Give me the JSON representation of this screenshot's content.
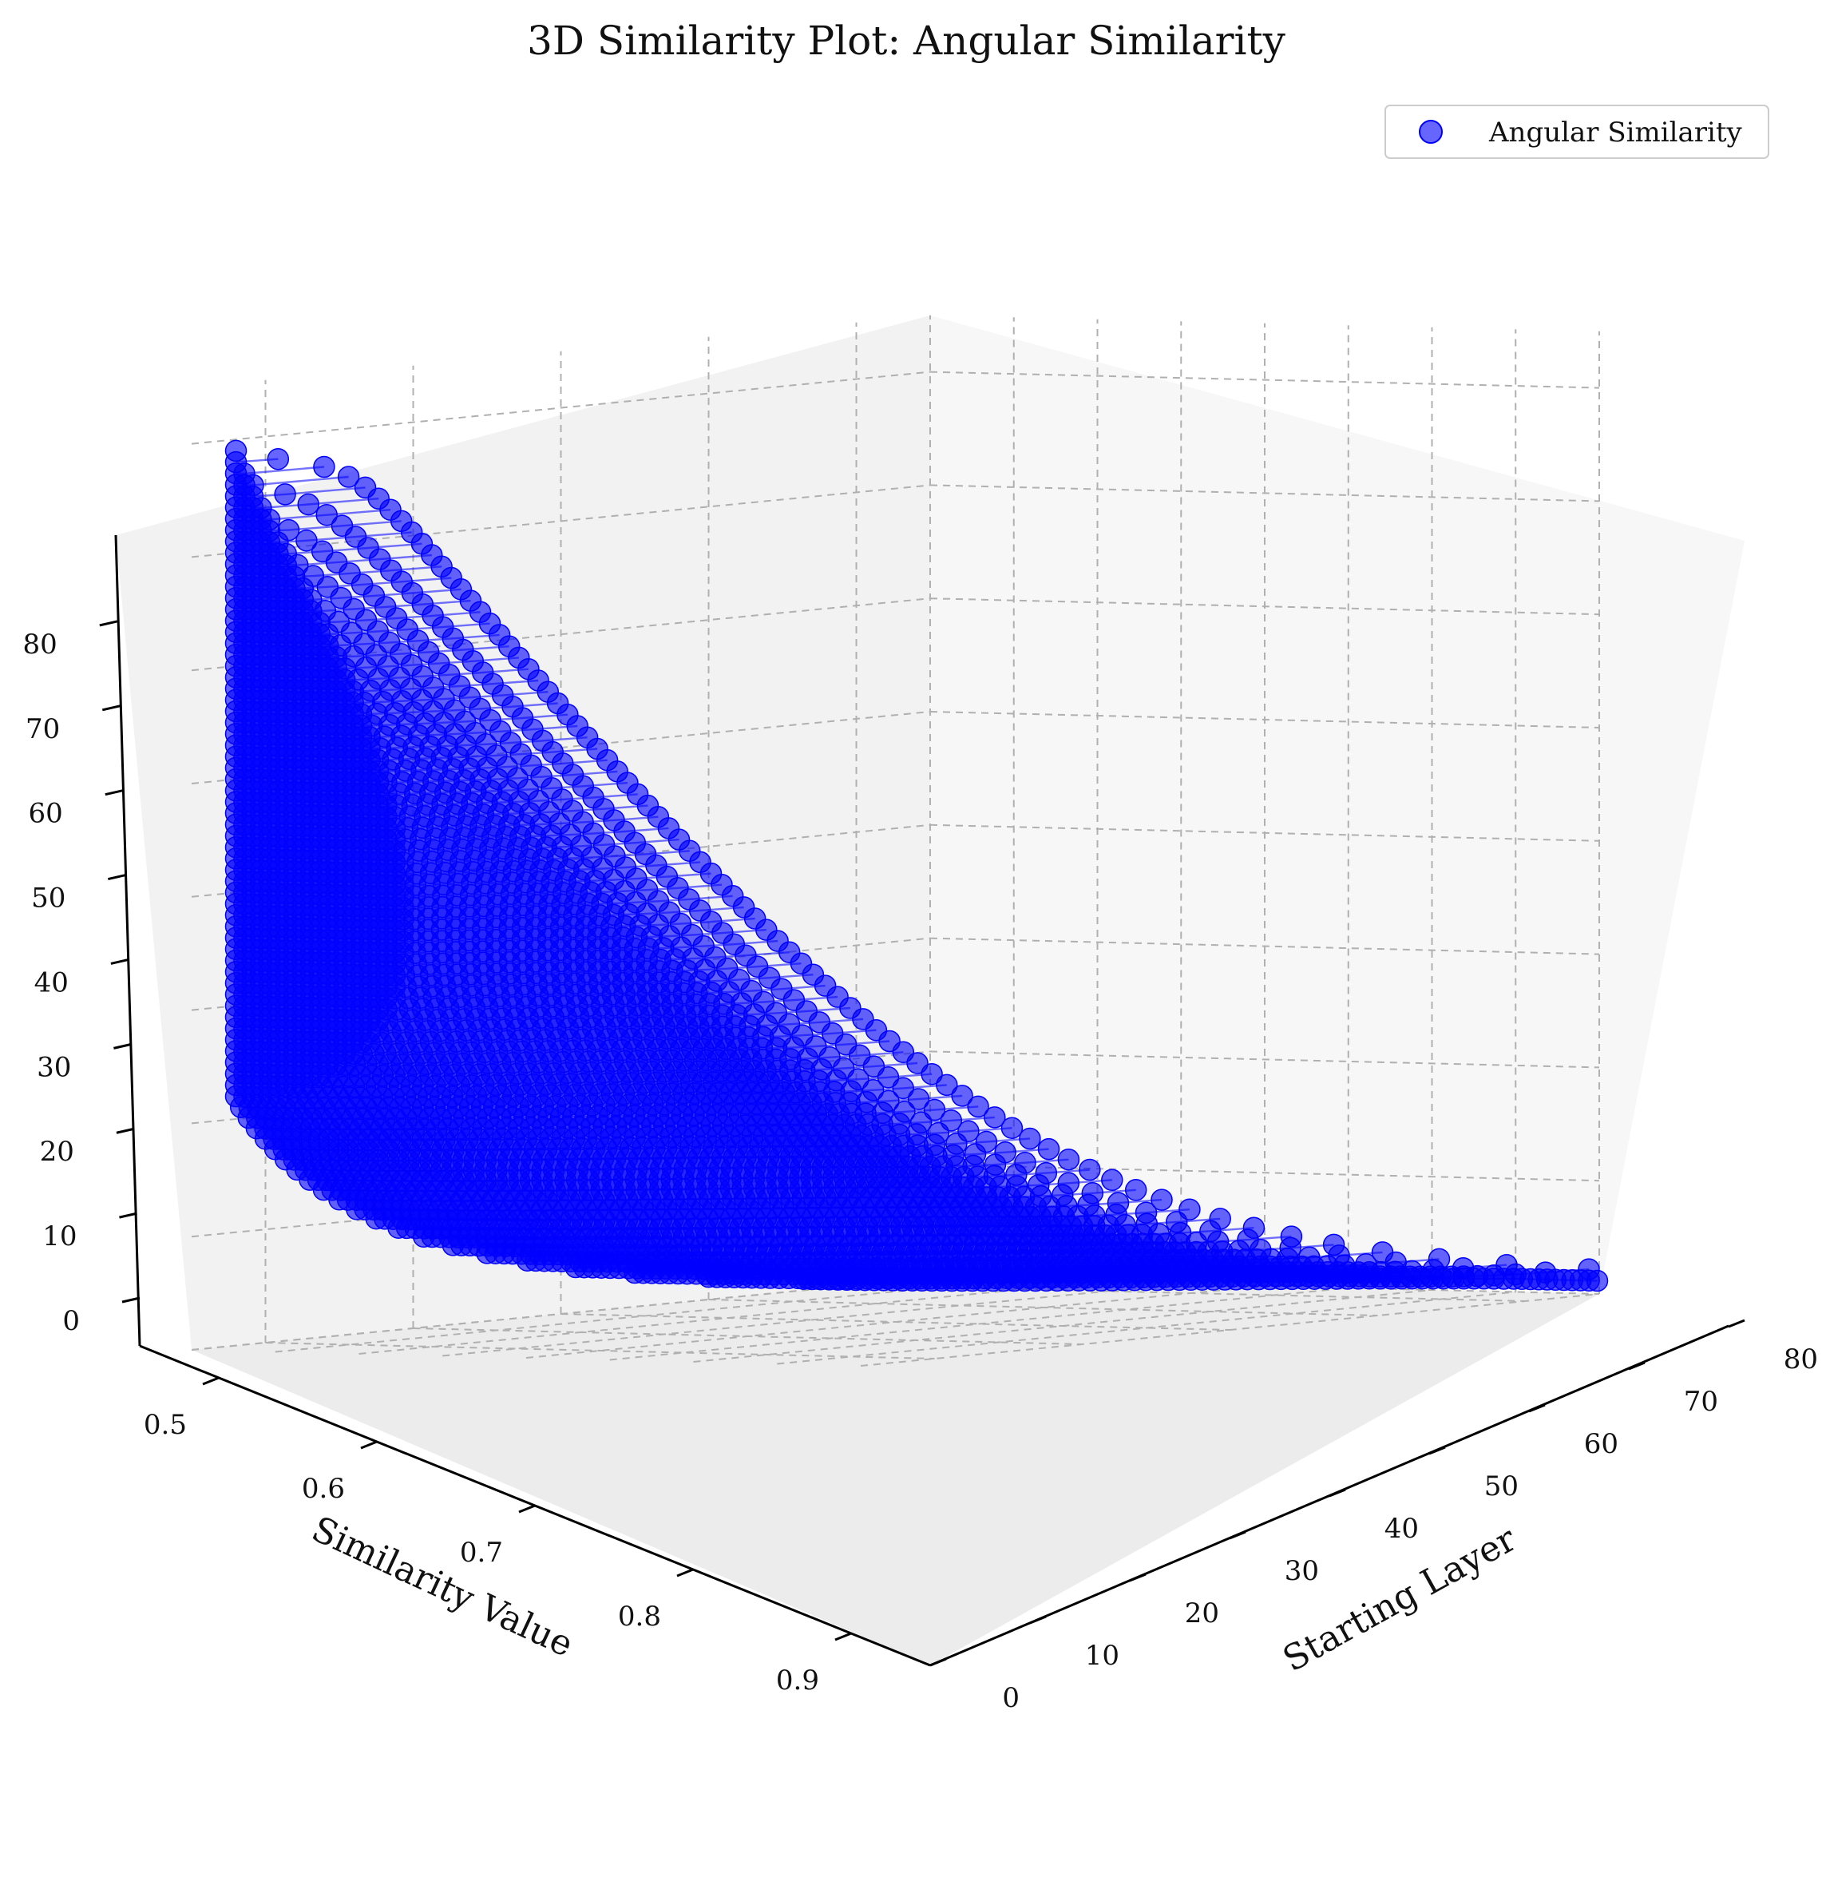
{
  "chart_data": {
    "type": "scatter",
    "projection": "3d",
    "title": "3D Similarity Plot: Angular Similarity",
    "xlabel": "Starting Layer",
    "ylabel": "Similarity Value",
    "zlabel": "",
    "xlim": [
      0,
      80
    ],
    "ylim": [
      0.45,
      0.95
    ],
    "zlim": [
      0,
      85
    ],
    "x_ticks": [
      0,
      10,
      20,
      30,
      40,
      50,
      60,
      70,
      80
    ],
    "y_ticks": [
      0.5,
      0.6,
      0.7,
      0.8,
      0.9
    ],
    "z_ticks": [
      0,
      10,
      20,
      30,
      40,
      50,
      60,
      70,
      80
    ],
    "grid": true,
    "legend_position": "top-right",
    "series": [
      {
        "name": "Angular Similarity",
        "color": "#0000ff",
        "marker": "circle",
        "alpha": 0.6,
        "structure": "for each skip count n (vertical axis, 1..79) one point per starting layer (0..79-n); points of equal n joined by lines",
        "num_layers": 80,
        "model": {
          "description": "value = clamp(1 - 0.6*n/(n + 6) - 0.05*cos(pi*l/(L-n)) + 0.06*exp(-(L-n-1-l)/2), 0.48, 0.96)"
        }
      }
    ]
  }
}
